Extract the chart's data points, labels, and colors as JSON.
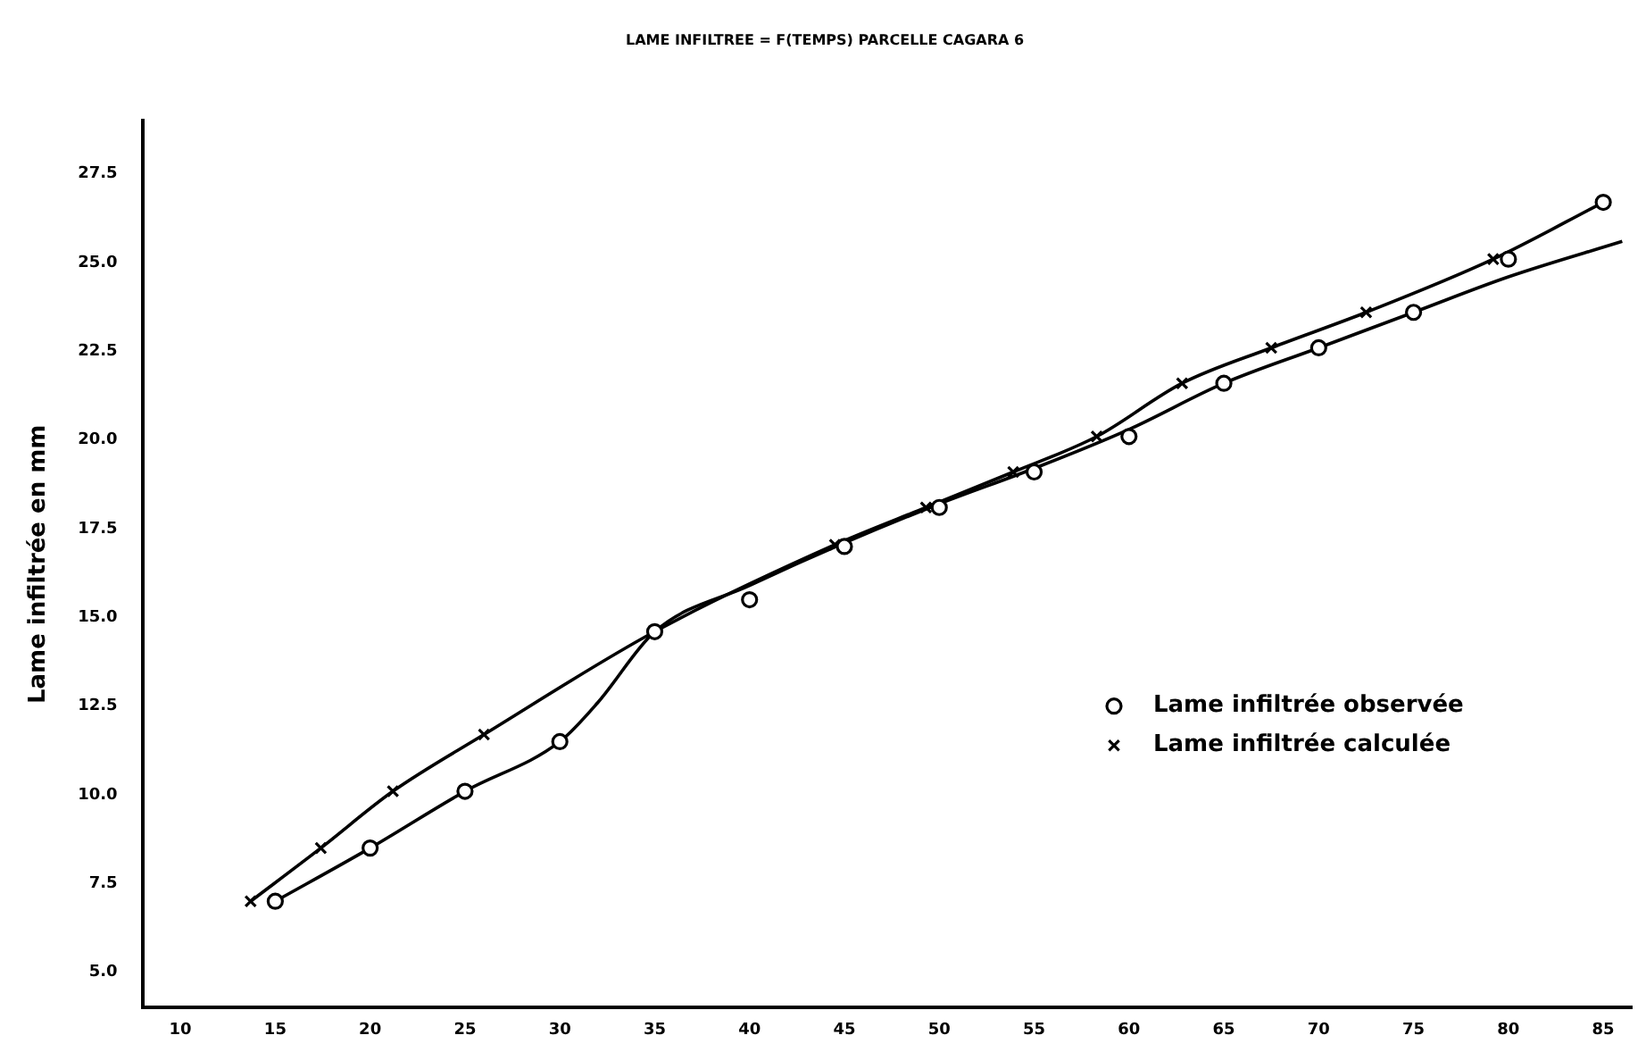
{
  "chart_data": {
    "type": "line",
    "title": "LAME INFILTREE = F(TEMPS) PARCELLE CAGARA 6",
    "ylabel": "Lame infiltrée en mm",
    "xlim": [
      8,
      86.5
    ],
    "xticks": [
      10,
      15,
      20,
      25,
      30,
      35,
      40,
      45,
      50,
      55,
      60,
      65,
      70,
      75,
      80,
      85
    ],
    "ylim": [
      4,
      29
    ],
    "yticks": [
      {
        "value": 5,
        "label": "5.0"
      },
      {
        "value": 7.5,
        "label": "7.5"
      },
      {
        "value": 10,
        "label": "10.0"
      },
      {
        "value": 12.5,
        "label": "12.5"
      },
      {
        "value": 15,
        "label": "15.0"
      },
      {
        "value": 17.5,
        "label": "17.5"
      },
      {
        "value": 20,
        "label": "20.0"
      },
      {
        "value": 22.5,
        "label": "22.5"
      },
      {
        "value": 25,
        "label": "25.0"
      },
      {
        "value": 27.5,
        "label": "27.5"
      }
    ],
    "grid": false,
    "legend": "right",
    "series": [
      {
        "name": "Lame infiltrée observée",
        "type": "scatter",
        "marker": "circle",
        "color": "#000000",
        "x": [
          15,
          20,
          25,
          30,
          35,
          40,
          45,
          50,
          55,
          60,
          65,
          70,
          75,
          80,
          85
        ],
        "values": [
          7.0,
          8.5,
          10.1,
          11.5,
          14.6,
          15.5,
          17.0,
          18.1,
          19.1,
          20.1,
          21.6,
          22.6,
          23.6,
          25.1,
          26.7
        ]
      },
      {
        "name": "Lame infiltrée calculée",
        "type": "line",
        "marker": "cross",
        "color": "#000000",
        "x": [
          13.7,
          17.4,
          21.2,
          26,
          35,
          44.5,
          49.3,
          53.9,
          58.3,
          62.8,
          67.5,
          72.5,
          79.2,
          85
        ],
        "values": [
          7.0,
          8.5,
          10.1,
          11.7,
          14.6,
          17.05,
          18.1,
          19.1,
          20.1,
          21.6,
          22.6,
          23.6,
          25.1,
          26.7
        ]
      },
      {
        "marker": "none",
        "color": "#000000",
        "x": [
          15,
          20,
          25,
          30,
          32,
          35,
          40,
          45,
          50,
          55,
          60,
          65,
          70,
          75,
          80,
          86
        ],
        "values": [
          7.0,
          8.5,
          10.1,
          11.5,
          12.6,
          14.6,
          15.9,
          17.1,
          18.2,
          19.2,
          20.3,
          21.6,
          22.6,
          23.6,
          24.6,
          25.6
        ]
      }
    ]
  }
}
